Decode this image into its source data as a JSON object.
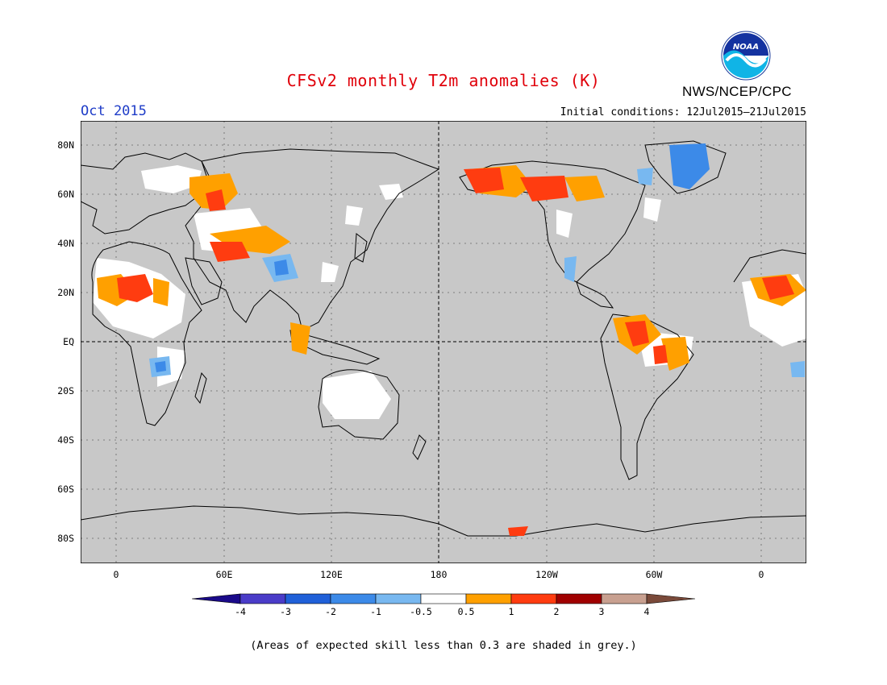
{
  "header": {
    "title": "CFSv2 monthly T2m anomalies (K)",
    "agency": "NWS/NCEP/CPC",
    "logo_text": "NOAA",
    "period": "Oct 2015",
    "initial_conditions": "Initial conditions: 12Jul2015–21Jul2015"
  },
  "axes": {
    "y_ticks": [
      "80N",
      "60N",
      "40N",
      "20N",
      "EQ",
      "20S",
      "40S",
      "60S",
      "80S"
    ],
    "x_ticks": [
      "0",
      "60E",
      "120E",
      "180",
      "120W",
      "60W",
      "0"
    ]
  },
  "colorbar": {
    "labels": [
      "-4",
      "-3",
      "-2",
      "-1",
      "-0.5",
      "0.5",
      "1",
      "2",
      "3",
      "4"
    ],
    "colors": [
      "#1a0a8a",
      "#4a3cc8",
      "#2060d8",
      "#3c8ae8",
      "#78b8f0",
      "#ffffff",
      "#ffa000",
      "#ff3c10",
      "#a00000",
      "#c8a090",
      "#7a4a3a"
    ]
  },
  "map_colors": {
    "ocean_grey": "#c8c8c8",
    "no_signal": "#ffffff"
  },
  "footnote": "(Areas of expected skill less than 0.3 are shaded in grey.)"
}
